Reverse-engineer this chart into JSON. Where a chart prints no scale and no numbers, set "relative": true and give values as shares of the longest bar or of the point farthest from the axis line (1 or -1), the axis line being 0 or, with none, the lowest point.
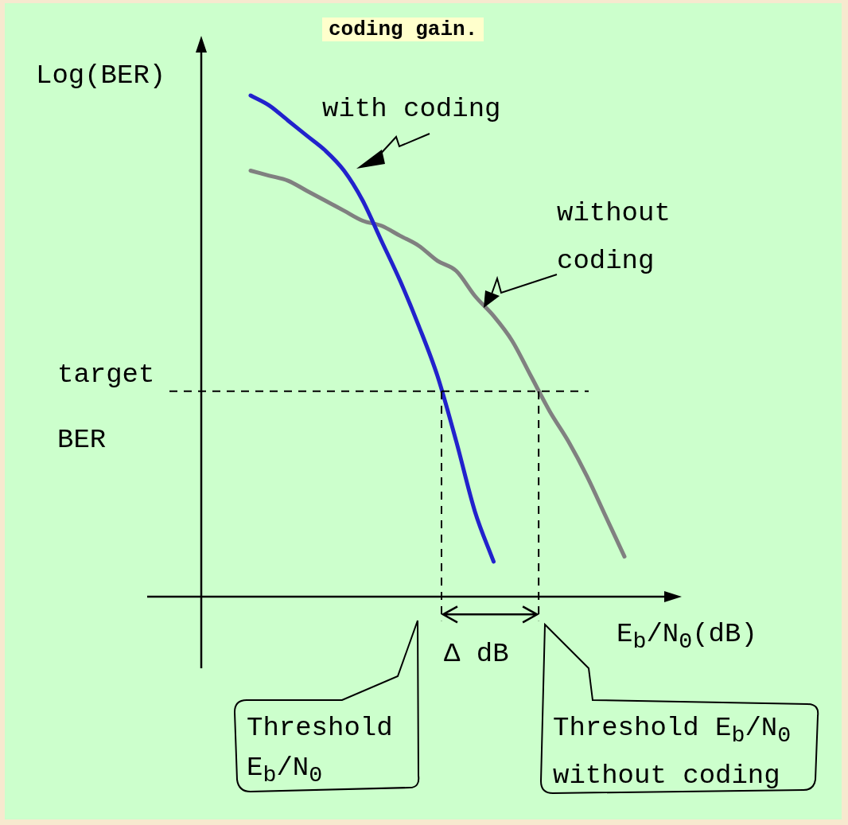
{
  "chart_data": {
    "type": "line",
    "title": "coding gain.",
    "xlabel": "E$_{b}$/N$_{0}$(dB)",
    "ylabel": "Log(BER)",
    "relative": true,
    "categories": [
      null,
      null,
      null,
      null,
      null,
      null,
      null,
      null,
      null,
      null,
      null,
      null,
      null,
      null,
      null,
      null,
      null,
      null,
      null,
      null,
      null
    ],
    "series": [
      {
        "name": "with coding",
        "color": "#2222cc",
        "values": [
          1.0,
          0.98,
          0.95,
          0.92,
          0.89,
          0.85,
          0.79,
          0.71,
          0.63,
          0.54,
          0.44,
          0.31,
          0.17,
          0.07,
          null,
          null,
          null,
          null,
          null,
          null,
          null
        ]
      },
      {
        "name": "without coding",
        "color": "#808080",
        "values": [
          0.85,
          0.84,
          0.83,
          0.81,
          0.79,
          0.77,
          0.75,
          0.74,
          0.72,
          0.7,
          0.67,
          0.65,
          0.6,
          0.56,
          0.51,
          0.44,
          0.37,
          0.31,
          0.24,
          0.16,
          0.08
        ]
      }
    ],
    "ref_lines": [
      {
        "axis": "y",
        "value": 0.41,
        "label": "target BER",
        "line_style": "dashed",
        "color": "#000000"
      }
    ],
    "annotations": [
      "Δ dB",
      "Threshold E$_{b}$/N$_{0}$",
      "Threshold E$_{b}$/N$_{0}$ without coding"
    ],
    "legend": false,
    "marker": "none",
    "line_style": "solid"
  }
}
